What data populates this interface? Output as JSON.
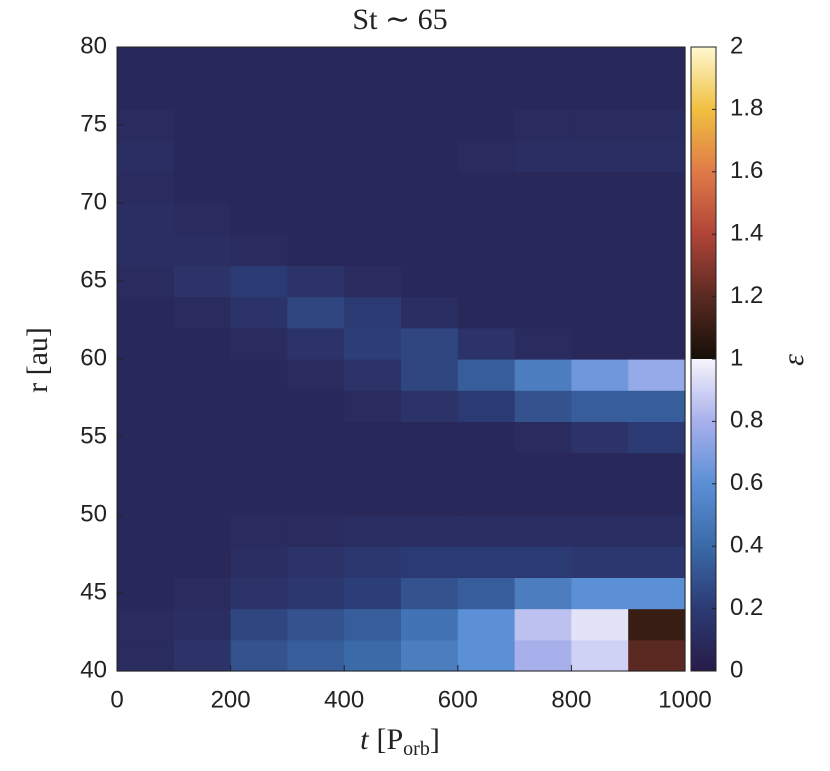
{
  "chart_data": {
    "type": "heatmap",
    "title": "St ∼ 65",
    "xlabel_parts": [
      "t",
      "[P",
      "orb",
      "]"
    ],
    "ylabel": "r [au]",
    "colorbar_label": "ε",
    "xlim": [
      0,
      1000
    ],
    "xticks": [
      0,
      200,
      400,
      600,
      800,
      1000
    ],
    "ylim": [
      40,
      80
    ],
    "yticks": [
      40,
      45,
      50,
      55,
      60,
      65,
      70,
      75,
      80
    ],
    "clim": [
      0,
      2
    ],
    "cticks": [
      0,
      0.2,
      0.4,
      0.6,
      0.8,
      1,
      1.2,
      1.4,
      1.6,
      1.8,
      2
    ],
    "colormap_low": [
      "#271c48",
      "#2c3a74",
      "#3a6aa8",
      "#5b8fd6",
      "#a8b0ec",
      "#f6f4fc"
    ],
    "colormap_high": [
      "#150f08",
      "#5a2a22",
      "#b04438",
      "#e07a48",
      "#f0c040",
      "#fff8d0"
    ],
    "x": [
      50,
      150,
      250,
      350,
      450,
      550,
      650,
      750,
      850,
      950
    ],
    "y": [
      41,
      43,
      45,
      47,
      49,
      51,
      53,
      55,
      57,
      59,
      61,
      63,
      65,
      67,
      69,
      71,
      73,
      75,
      77,
      79
    ],
    "z": [
      [
        0.1,
        0.15,
        0.3,
        0.35,
        0.4,
        0.5,
        0.6,
        0.8,
        0.9,
        1.2
      ],
      [
        0.1,
        0.12,
        0.25,
        0.3,
        0.35,
        0.45,
        0.6,
        0.85,
        0.95,
        1.1
      ],
      [
        0.08,
        0.1,
        0.15,
        0.18,
        0.22,
        0.3,
        0.35,
        0.5,
        0.6,
        0.6
      ],
      [
        0.08,
        0.08,
        0.12,
        0.15,
        0.18,
        0.2,
        0.2,
        0.2,
        0.18,
        0.18
      ],
      [
        0.08,
        0.08,
        0.1,
        0.1,
        0.12,
        0.12,
        0.12,
        0.12,
        0.12,
        0.12
      ],
      [
        0.08,
        0.08,
        0.08,
        0.08,
        0.08,
        0.08,
        0.08,
        0.08,
        0.08,
        0.08
      ],
      [
        0.08,
        0.08,
        0.08,
        0.08,
        0.08,
        0.08,
        0.08,
        0.08,
        0.08,
        0.08
      ],
      [
        0.08,
        0.08,
        0.08,
        0.08,
        0.08,
        0.08,
        0.08,
        0.1,
        0.15,
        0.2
      ],
      [
        0.08,
        0.08,
        0.08,
        0.08,
        0.1,
        0.15,
        0.2,
        0.3,
        0.35,
        0.35
      ],
      [
        0.08,
        0.08,
        0.08,
        0.1,
        0.15,
        0.25,
        0.35,
        0.5,
        0.65,
        0.75
      ],
      [
        0.08,
        0.08,
        0.1,
        0.15,
        0.22,
        0.25,
        0.15,
        0.1,
        0.08,
        0.08
      ],
      [
        0.08,
        0.1,
        0.15,
        0.25,
        0.2,
        0.12,
        0.08,
        0.08,
        0.08,
        0.08
      ],
      [
        0.1,
        0.15,
        0.2,
        0.15,
        0.1,
        0.08,
        0.08,
        0.08,
        0.08,
        0.08
      ],
      [
        0.12,
        0.12,
        0.1,
        0.08,
        0.08,
        0.08,
        0.08,
        0.08,
        0.08,
        0.08
      ],
      [
        0.12,
        0.1,
        0.08,
        0.08,
        0.08,
        0.08,
        0.08,
        0.08,
        0.08,
        0.08
      ],
      [
        0.1,
        0.08,
        0.08,
        0.08,
        0.08,
        0.08,
        0.08,
        0.08,
        0.08,
        0.08
      ],
      [
        0.12,
        0.08,
        0.08,
        0.08,
        0.08,
        0.08,
        0.1,
        0.12,
        0.12,
        0.12
      ],
      [
        0.1,
        0.08,
        0.08,
        0.08,
        0.08,
        0.08,
        0.08,
        0.1,
        0.1,
        0.1
      ],
      [
        0.08,
        0.08,
        0.08,
        0.08,
        0.08,
        0.08,
        0.08,
        0.08,
        0.08,
        0.08
      ],
      [
        0.08,
        0.08,
        0.08,
        0.08,
        0.08,
        0.08,
        0.08,
        0.08,
        0.08,
        0.08
      ]
    ]
  }
}
